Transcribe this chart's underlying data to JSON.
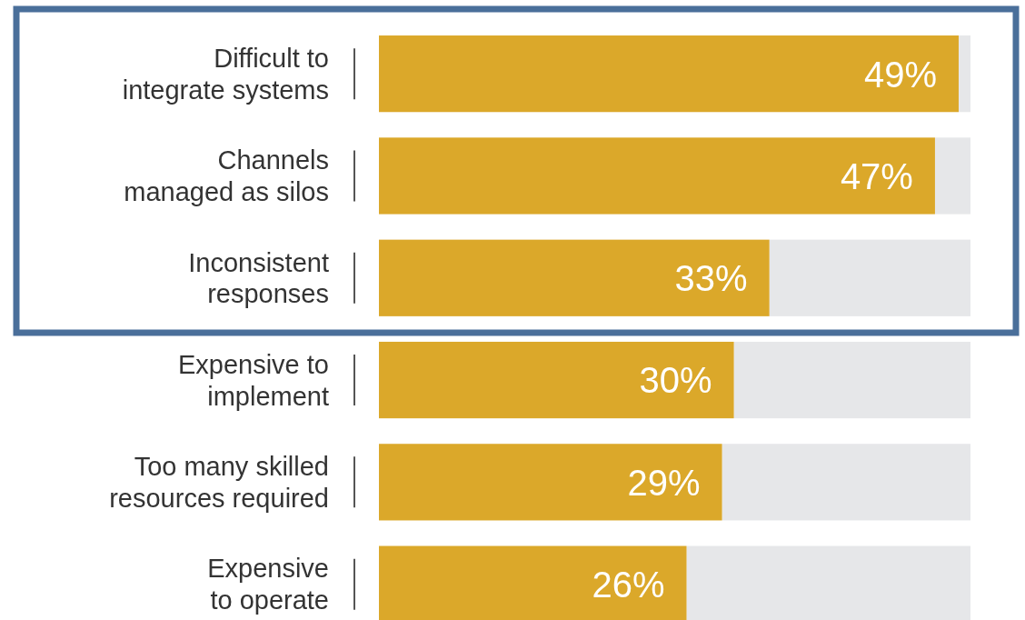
{
  "chart_data": {
    "type": "bar",
    "orientation": "horizontal",
    "categories": [
      "Difficult to\nintegrate systems",
      "Channels\nmanaged as silos",
      "Inconsistent\nresponses",
      "Expensive to\nimplement",
      "Too many skilled\nresources required",
      "Expensive\nto operate"
    ],
    "values": [
      49,
      47,
      33,
      30,
      29,
      26
    ],
    "color": "#dba82a",
    "xlim": [
      0,
      50
    ],
    "data_labels": true,
    "value_labels": [
      "49%",
      "47%",
      "33%",
      "30%",
      "29%",
      "26%"
    ],
    "tick_labels": "y"
  }
}
